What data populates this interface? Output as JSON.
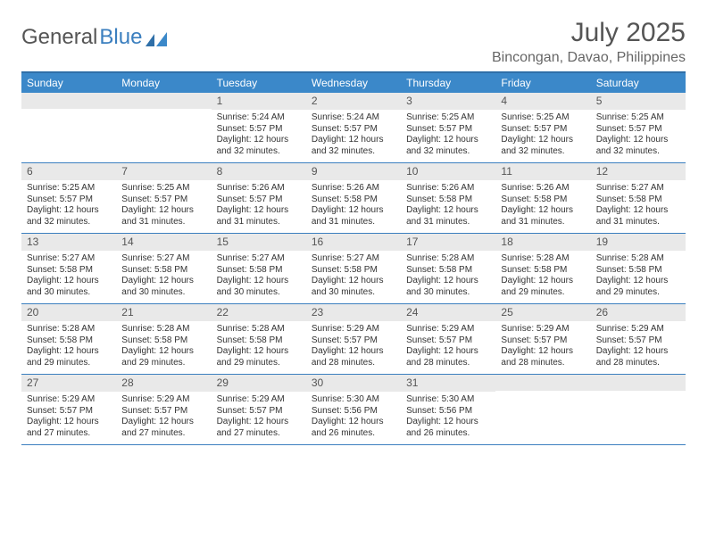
{
  "logo": {
    "part1": "General",
    "part2": "Blue"
  },
  "title": "July 2025",
  "location": "Bincongan, Davao, Philippines",
  "colors": {
    "header_bg": "#3b88c9",
    "border": "#3b7fbf",
    "daynum_bg": "#e9e9e9",
    "text": "#333333",
    "title_text": "#555555"
  },
  "dayNames": [
    "Sunday",
    "Monday",
    "Tuesday",
    "Wednesday",
    "Thursday",
    "Friday",
    "Saturday"
  ],
  "weeks": [
    [
      {
        "n": "",
        "sr": "",
        "ss": "",
        "dl": ""
      },
      {
        "n": "",
        "sr": "",
        "ss": "",
        "dl": ""
      },
      {
        "n": "1",
        "sr": "Sunrise: 5:24 AM",
        "ss": "Sunset: 5:57 PM",
        "dl": "Daylight: 12 hours and 32 minutes."
      },
      {
        "n": "2",
        "sr": "Sunrise: 5:24 AM",
        "ss": "Sunset: 5:57 PM",
        "dl": "Daylight: 12 hours and 32 minutes."
      },
      {
        "n": "3",
        "sr": "Sunrise: 5:25 AM",
        "ss": "Sunset: 5:57 PM",
        "dl": "Daylight: 12 hours and 32 minutes."
      },
      {
        "n": "4",
        "sr": "Sunrise: 5:25 AM",
        "ss": "Sunset: 5:57 PM",
        "dl": "Daylight: 12 hours and 32 minutes."
      },
      {
        "n": "5",
        "sr": "Sunrise: 5:25 AM",
        "ss": "Sunset: 5:57 PM",
        "dl": "Daylight: 12 hours and 32 minutes."
      }
    ],
    [
      {
        "n": "6",
        "sr": "Sunrise: 5:25 AM",
        "ss": "Sunset: 5:57 PM",
        "dl": "Daylight: 12 hours and 32 minutes."
      },
      {
        "n": "7",
        "sr": "Sunrise: 5:25 AM",
        "ss": "Sunset: 5:57 PM",
        "dl": "Daylight: 12 hours and 31 minutes."
      },
      {
        "n": "8",
        "sr": "Sunrise: 5:26 AM",
        "ss": "Sunset: 5:57 PM",
        "dl": "Daylight: 12 hours and 31 minutes."
      },
      {
        "n": "9",
        "sr": "Sunrise: 5:26 AM",
        "ss": "Sunset: 5:58 PM",
        "dl": "Daylight: 12 hours and 31 minutes."
      },
      {
        "n": "10",
        "sr": "Sunrise: 5:26 AM",
        "ss": "Sunset: 5:58 PM",
        "dl": "Daylight: 12 hours and 31 minutes."
      },
      {
        "n": "11",
        "sr": "Sunrise: 5:26 AM",
        "ss": "Sunset: 5:58 PM",
        "dl": "Daylight: 12 hours and 31 minutes."
      },
      {
        "n": "12",
        "sr": "Sunrise: 5:27 AM",
        "ss": "Sunset: 5:58 PM",
        "dl": "Daylight: 12 hours and 31 minutes."
      }
    ],
    [
      {
        "n": "13",
        "sr": "Sunrise: 5:27 AM",
        "ss": "Sunset: 5:58 PM",
        "dl": "Daylight: 12 hours and 30 minutes."
      },
      {
        "n": "14",
        "sr": "Sunrise: 5:27 AM",
        "ss": "Sunset: 5:58 PM",
        "dl": "Daylight: 12 hours and 30 minutes."
      },
      {
        "n": "15",
        "sr": "Sunrise: 5:27 AM",
        "ss": "Sunset: 5:58 PM",
        "dl": "Daylight: 12 hours and 30 minutes."
      },
      {
        "n": "16",
        "sr": "Sunrise: 5:27 AM",
        "ss": "Sunset: 5:58 PM",
        "dl": "Daylight: 12 hours and 30 minutes."
      },
      {
        "n": "17",
        "sr": "Sunrise: 5:28 AM",
        "ss": "Sunset: 5:58 PM",
        "dl": "Daylight: 12 hours and 30 minutes."
      },
      {
        "n": "18",
        "sr": "Sunrise: 5:28 AM",
        "ss": "Sunset: 5:58 PM",
        "dl": "Daylight: 12 hours and 29 minutes."
      },
      {
        "n": "19",
        "sr": "Sunrise: 5:28 AM",
        "ss": "Sunset: 5:58 PM",
        "dl": "Daylight: 12 hours and 29 minutes."
      }
    ],
    [
      {
        "n": "20",
        "sr": "Sunrise: 5:28 AM",
        "ss": "Sunset: 5:58 PM",
        "dl": "Daylight: 12 hours and 29 minutes."
      },
      {
        "n": "21",
        "sr": "Sunrise: 5:28 AM",
        "ss": "Sunset: 5:58 PM",
        "dl": "Daylight: 12 hours and 29 minutes."
      },
      {
        "n": "22",
        "sr": "Sunrise: 5:28 AM",
        "ss": "Sunset: 5:58 PM",
        "dl": "Daylight: 12 hours and 29 minutes."
      },
      {
        "n": "23",
        "sr": "Sunrise: 5:29 AM",
        "ss": "Sunset: 5:57 PM",
        "dl": "Daylight: 12 hours and 28 minutes."
      },
      {
        "n": "24",
        "sr": "Sunrise: 5:29 AM",
        "ss": "Sunset: 5:57 PM",
        "dl": "Daylight: 12 hours and 28 minutes."
      },
      {
        "n": "25",
        "sr": "Sunrise: 5:29 AM",
        "ss": "Sunset: 5:57 PM",
        "dl": "Daylight: 12 hours and 28 minutes."
      },
      {
        "n": "26",
        "sr": "Sunrise: 5:29 AM",
        "ss": "Sunset: 5:57 PM",
        "dl": "Daylight: 12 hours and 28 minutes."
      }
    ],
    [
      {
        "n": "27",
        "sr": "Sunrise: 5:29 AM",
        "ss": "Sunset: 5:57 PM",
        "dl": "Daylight: 12 hours and 27 minutes."
      },
      {
        "n": "28",
        "sr": "Sunrise: 5:29 AM",
        "ss": "Sunset: 5:57 PM",
        "dl": "Daylight: 12 hours and 27 minutes."
      },
      {
        "n": "29",
        "sr": "Sunrise: 5:29 AM",
        "ss": "Sunset: 5:57 PM",
        "dl": "Daylight: 12 hours and 27 minutes."
      },
      {
        "n": "30",
        "sr": "Sunrise: 5:30 AM",
        "ss": "Sunset: 5:56 PM",
        "dl": "Daylight: 12 hours and 26 minutes."
      },
      {
        "n": "31",
        "sr": "Sunrise: 5:30 AM",
        "ss": "Sunset: 5:56 PM",
        "dl": "Daylight: 12 hours and 26 minutes."
      },
      {
        "n": "",
        "sr": "",
        "ss": "",
        "dl": ""
      },
      {
        "n": "",
        "sr": "",
        "ss": "",
        "dl": ""
      }
    ]
  ]
}
